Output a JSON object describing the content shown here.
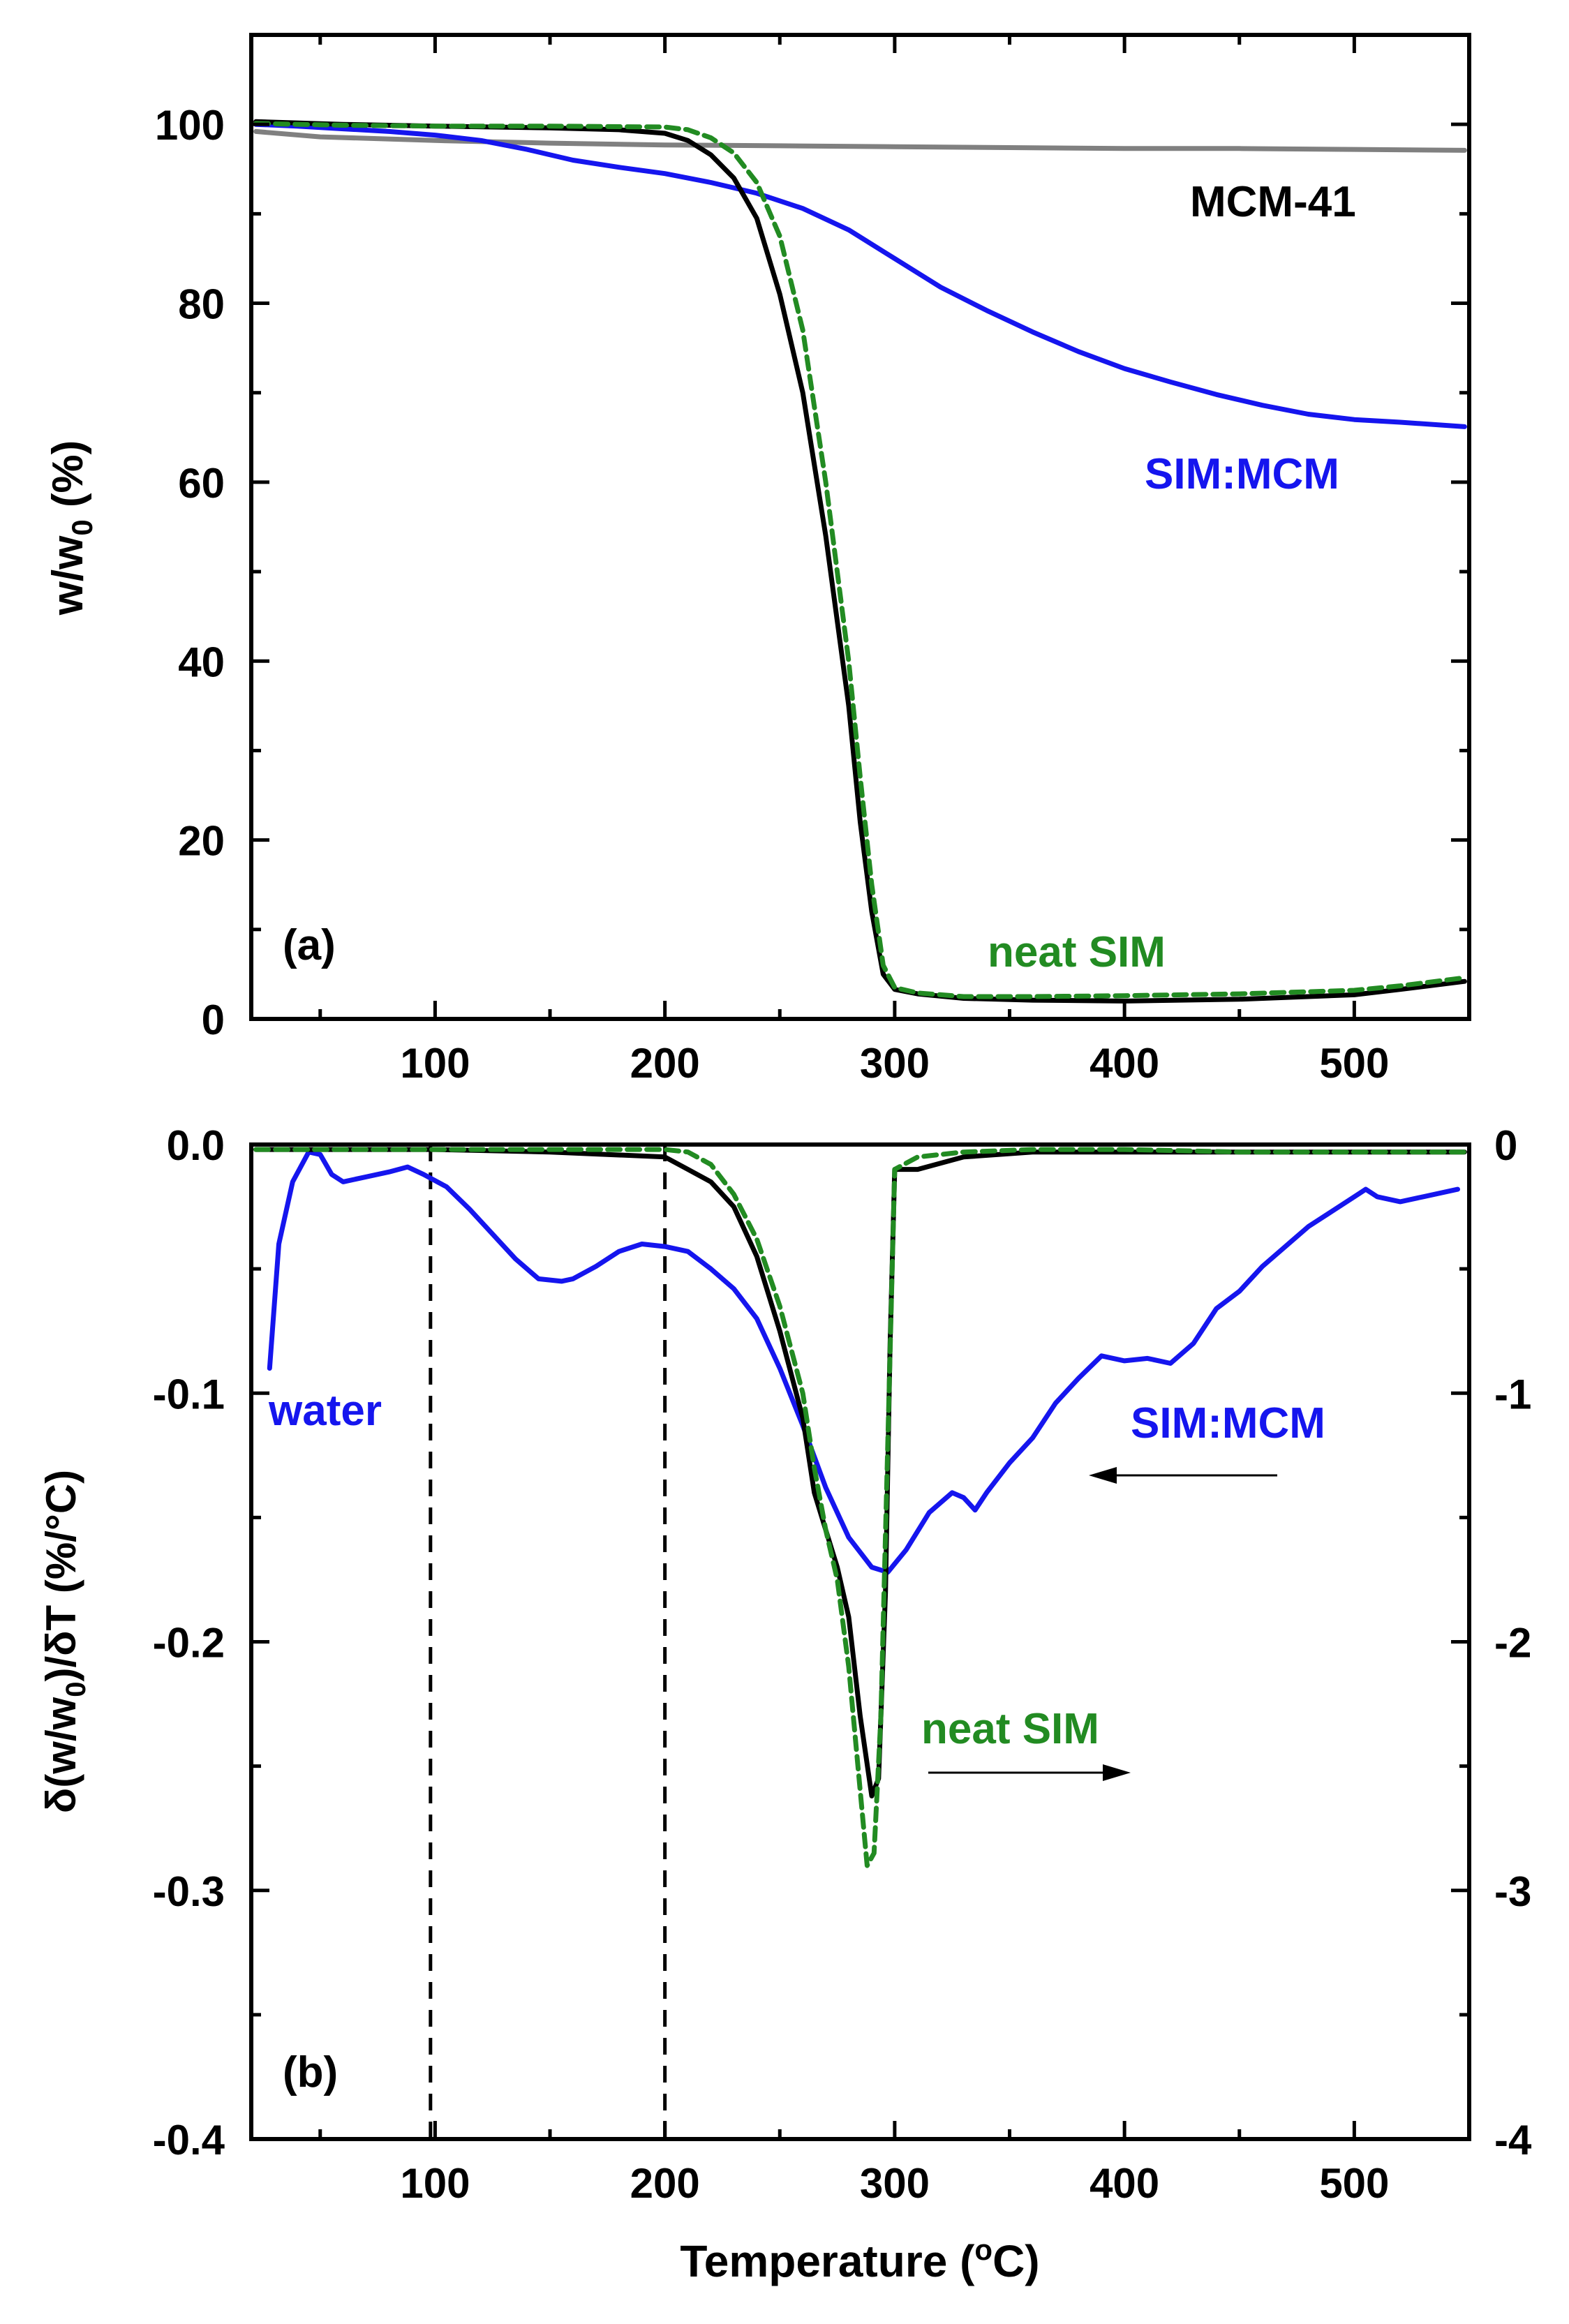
{
  "figure": {
    "xlabel": "Temperature (",
    "xlabel_sup": "o",
    "xlabel_end": "C)",
    "colors": {
      "neat_sim_solid": "#000000",
      "neat_sim_dashed": "#228B22",
      "sim_mcm": "#1515ee",
      "mcm41": "#808080",
      "axis": "#000000"
    }
  },
  "chart_data": [
    {
      "type": "line",
      "panel_label": "(a)",
      "title": "",
      "xlabel": "Temperature (oC)",
      "ylabel": "w/w0 (%)",
      "ylabel_main": "w/w",
      "ylabel_sub": "0",
      "ylabel_end": " (%)",
      "xlim": [
        20,
        550
      ],
      "ylim": [
        0,
        110
      ],
      "xticks": [
        100,
        200,
        300,
        400,
        500
      ],
      "yticks": [
        0,
        20,
        40,
        60,
        80,
        100
      ],
      "xticklabels": [
        "100",
        "200",
        "300",
        "400",
        "500"
      ],
      "yticklabels": [
        "0",
        "20",
        "40",
        "60",
        "80",
        "100"
      ],
      "grid": false,
      "annotations": [
        {
          "text": "MCM-41",
          "series": "MCM-41"
        },
        {
          "text": "SIM:MCM",
          "series": "SIM:MCM"
        },
        {
          "text": "neat SIM",
          "series": "neat SIM"
        }
      ],
      "series": [
        {
          "name": "MCM-41",
          "color": "#808080",
          "style": "solid",
          "x": [
            22,
            50,
            100,
            150,
            200,
            250,
            300,
            350,
            400,
            450,
            500,
            548
          ],
          "y": [
            99.2,
            98.6,
            98.2,
            97.9,
            97.7,
            97.6,
            97.5,
            97.4,
            97.3,
            97.3,
            97.2,
            97.1
          ]
        },
        {
          "name": "SIM:MCM",
          "color": "#1515ee",
          "style": "solid",
          "x": [
            22,
            40,
            60,
            80,
            100,
            120,
            140,
            160,
            180,
            200,
            220,
            240,
            260,
            280,
            300,
            320,
            340,
            360,
            380,
            400,
            420,
            440,
            460,
            480,
            500,
            520,
            548
          ],
          "y": [
            100,
            99.8,
            99.5,
            99.2,
            98.8,
            98.2,
            97.2,
            96,
            95.2,
            94.5,
            93.5,
            92.3,
            90.6,
            88.2,
            85,
            81.8,
            79.2,
            76.8,
            74.6,
            72.7,
            71.2,
            69.8,
            68.6,
            67.6,
            67,
            66.7,
            66.2
          ]
        },
        {
          "name": "neat SIM",
          "color": "#000000",
          "style": "solid",
          "x": [
            22,
            60,
            100,
            150,
            180,
            200,
            210,
            220,
            230,
            240,
            250,
            260,
            270,
            280,
            285,
            290,
            295,
            300,
            310,
            330,
            360,
            400,
            450,
            500,
            520,
            548
          ],
          "y": [
            100.3,
            100,
            99.8,
            99.6,
            99.4,
            99,
            98.2,
            96.6,
            94,
            89.5,
            81,
            70,
            54,
            35,
            22,
            12,
            5,
            3.3,
            2.8,
            2.3,
            2.1,
            2.0,
            2.2,
            2.7,
            3.3,
            4.2
          ]
        },
        {
          "name": "neat SIM (dashed)",
          "color": "#228B22",
          "style": "dashed",
          "x": [
            22,
            60,
            100,
            150,
            200,
            210,
            220,
            230,
            240,
            250,
            260,
            270,
            280,
            285,
            290,
            295,
            300,
            310,
            330,
            360,
            400,
            450,
            500,
            520,
            548
          ],
          "y": [
            100.1,
            99.9,
            99.8,
            99.8,
            99.7,
            99.4,
            98.5,
            96.8,
            93.5,
            87.5,
            77,
            60,
            40,
            27,
            15,
            6,
            3.5,
            2.9,
            2.5,
            2.5,
            2.6,
            2.8,
            3.2,
            3.7,
            4.6
          ]
        }
      ]
    },
    {
      "type": "line",
      "panel_label": "(b)",
      "title": "",
      "xlabel": "Temperature (oC)",
      "ylabel": "δ(w/w0)/δT (%/°C)",
      "ylabel_main": "δ(w/w",
      "ylabel_sub": "0",
      "ylabel_end": ")/δT (%/°C)",
      "xlim": [
        20,
        550
      ],
      "ylim": [
        -0.4,
        0.0
      ],
      "ylim_right": [
        -4,
        0
      ],
      "xticks": [
        100,
        200,
        300,
        400,
        500
      ],
      "yticks": [
        -0.4,
        -0.3,
        -0.2,
        -0.1,
        0.0
      ],
      "xticklabels": [
        "100",
        "200",
        "300",
        "400",
        "500"
      ],
      "yticklabels": [
        "-0.4",
        "-0.3",
        "-0.2",
        "-0.1",
        "0.0"
      ],
      "yticks_right": [
        -4,
        -3,
        -2,
        -1,
        0
      ],
      "yticklabels_right": [
        "-4",
        "-3",
        "-2",
        "-1",
        "0"
      ],
      "vlines": [
        98,
        200
      ],
      "grid": false,
      "annotations": [
        {
          "text": "water"
        },
        {
          "text": "SIM:MCM",
          "arrow": "left",
          "axis": "left"
        },
        {
          "text": "neat SIM",
          "arrow": "right",
          "axis": "right"
        }
      ],
      "series": [
        {
          "name": "SIM:MCM",
          "color": "#1515ee",
          "style": "solid",
          "axis": "left",
          "x": [
            28,
            32,
            38,
            45,
            50,
            55,
            60,
            70,
            80,
            88,
            95,
            105,
            115,
            125,
            135,
            145,
            155,
            160,
            170,
            180,
            190,
            200,
            210,
            220,
            230,
            240,
            250,
            260,
            270,
            280,
            290,
            297,
            305,
            315,
            325,
            330,
            335,
            340,
            350,
            360,
            370,
            380,
            390,
            400,
            410,
            420,
            430,
            440,
            450,
            460,
            470,
            480,
            490,
            500,
            505,
            510,
            520,
            530,
            545
          ],
          "y": [
            -0.09,
            -0.04,
            -0.015,
            -0.003,
            -0.004,
            -0.012,
            -0.015,
            -0.013,
            -0.011,
            -0.009,
            -0.012,
            -0.017,
            -0.026,
            -0.036,
            -0.046,
            -0.054,
            -0.055,
            -0.054,
            -0.049,
            -0.043,
            -0.04,
            -0.041,
            -0.043,
            -0.05,
            -0.058,
            -0.07,
            -0.09,
            -0.113,
            -0.138,
            -0.158,
            -0.17,
            -0.172,
            -0.163,
            -0.148,
            -0.14,
            -0.142,
            -0.147,
            -0.14,
            -0.128,
            -0.118,
            -0.104,
            -0.094,
            -0.085,
            -0.087,
            -0.086,
            -0.088,
            -0.08,
            -0.066,
            -0.059,
            -0.049,
            -0.041,
            -0.033,
            -0.027,
            -0.021,
            -0.018,
            -0.021,
            -0.023,
            -0.021,
            -0.018
          ]
        },
        {
          "name": "neat SIM",
          "color": "#000000",
          "style": "solid",
          "axis": "right",
          "x": [
            22,
            60,
            100,
            150,
            200,
            210,
            220,
            230,
            240,
            250,
            260,
            265,
            270,
            275,
            280,
            285,
            290,
            293,
            296,
            298,
            300,
            310,
            330,
            360,
            400,
            450,
            500,
            548
          ],
          "y": [
            -0.02,
            -0.02,
            -0.02,
            -0.03,
            -0.05,
            -0.1,
            -0.15,
            -0.25,
            -0.45,
            -0.75,
            -1.1,
            -1.4,
            -1.55,
            -1.7,
            -1.9,
            -2.3,
            -2.62,
            -2.55,
            -1.8,
            -0.8,
            -0.1,
            -0.1,
            -0.05,
            -0.03,
            -0.03,
            -0.03,
            -0.03,
            -0.03
          ]
        },
        {
          "name": "neat SIM (dashed)",
          "color": "#228B22",
          "style": "dashed",
          "axis": "right",
          "x": [
            22,
            60,
            100,
            150,
            200,
            210,
            220,
            230,
            240,
            250,
            260,
            265,
            270,
            275,
            280,
            285,
            288,
            291,
            294,
            297,
            300,
            310,
            330,
            360,
            400,
            450,
            500,
            548
          ],
          "y": [
            -0.02,
            -0.02,
            -0.02,
            -0.02,
            -0.02,
            -0.03,
            -0.08,
            -0.2,
            -0.38,
            -0.65,
            -1.0,
            -1.3,
            -1.55,
            -1.75,
            -2.1,
            -2.6,
            -2.9,
            -2.85,
            -2.3,
            -1.2,
            -0.1,
            -0.05,
            -0.03,
            -0.02,
            -0.02,
            -0.03,
            -0.03,
            -0.03
          ]
        }
      ]
    }
  ]
}
